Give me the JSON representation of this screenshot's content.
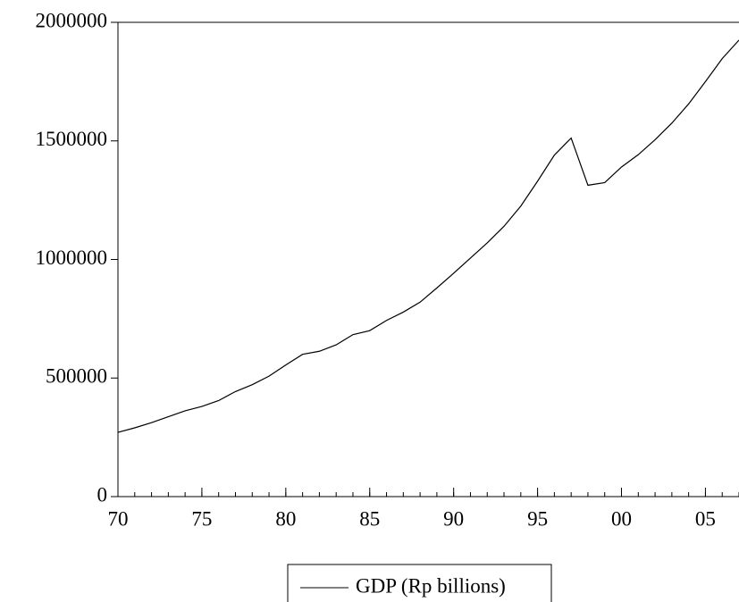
{
  "chart_data": {
    "type": "line",
    "x": [
      1970,
      1971,
      1972,
      1973,
      1974,
      1975,
      1976,
      1977,
      1978,
      1979,
      1980,
      1981,
      1982,
      1983,
      1984,
      1985,
      1986,
      1987,
      1988,
      1989,
      1990,
      1991,
      1992,
      1993,
      1994,
      1995,
      1996,
      1997,
      1998,
      1999,
      2000,
      2001,
      2002,
      2003,
      2004,
      2005,
      2006,
      2007
    ],
    "series": [
      {
        "name": "GDP (Rp billions)",
        "color": "#000000",
        "values": [
          271000,
          290000,
          312000,
          337000,
          362000,
          380000,
          405000,
          443000,
          472000,
          508000,
          555000,
          600000,
          613000,
          640000,
          683000,
          700000,
          743000,
          778000,
          820000,
          880000,
          942000,
          1006000,
          1070000,
          1140000,
          1225000,
          1330000,
          1440000,
          1512000,
          1313000,
          1324000,
          1390000,
          1442000,
          1505000,
          1575000,
          1656000,
          1750000,
          1847000,
          1925000
        ]
      }
    ],
    "xlim": [
      1970,
      2007
    ],
    "xticks": [
      {
        "value": 1970,
        "label": "70"
      },
      {
        "value": 1975,
        "label": "75"
      },
      {
        "value": 1980,
        "label": "80"
      },
      {
        "value": 1985,
        "label": "85"
      },
      {
        "value": 1990,
        "label": "90"
      },
      {
        "value": 1995,
        "label": "95"
      },
      {
        "value": 2000,
        "label": "00"
      },
      {
        "value": 2005,
        "label": "05"
      }
    ],
    "ylim": [
      0,
      2000000
    ],
    "yticks": [
      0,
      500000,
      1000000,
      1500000,
      2000000
    ],
    "grid": false,
    "legend": "bottom"
  }
}
